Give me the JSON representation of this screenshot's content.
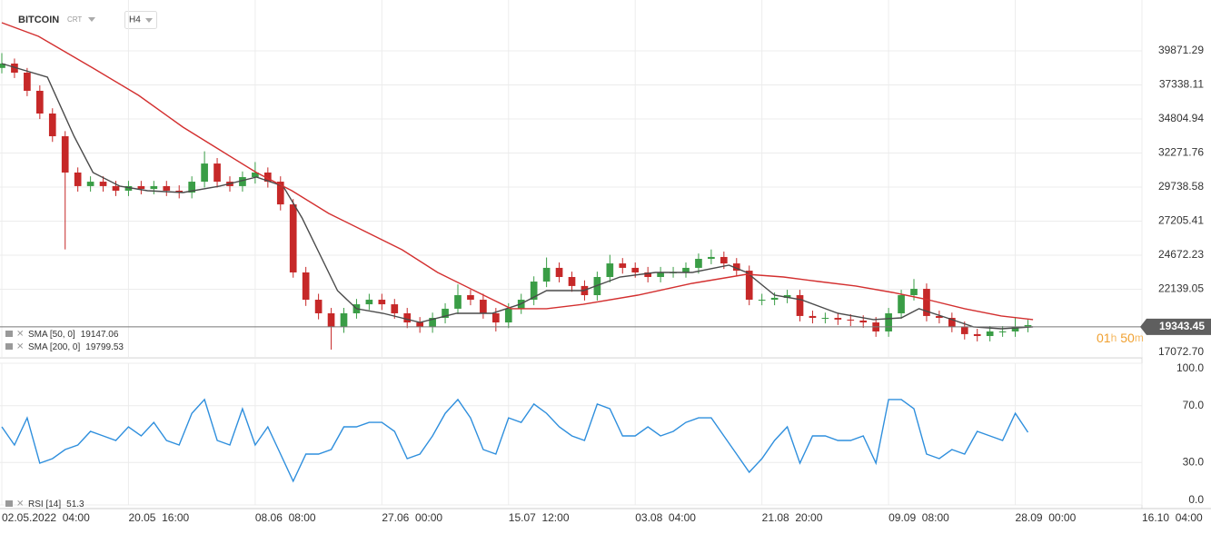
{
  "header": {
    "symbol": "BITCOIN",
    "market": "CRT",
    "timeframe": "H4"
  },
  "chart_data": [
    {
      "type": "candlestick",
      "x": [
        0,
        1,
        2,
        3,
        4,
        5,
        6,
        7,
        8,
        9,
        10,
        11,
        12,
        13,
        14,
        15,
        16,
        17,
        18,
        19,
        20,
        21,
        22,
        23,
        24,
        25,
        26,
        27,
        28,
        29,
        30,
        31,
        32,
        33,
        34,
        35,
        36,
        37,
        38,
        39,
        40,
        41,
        42,
        43,
        44,
        45,
        46,
        47,
        48,
        49,
        50,
        51,
        52,
        53,
        54,
        55,
        56,
        57,
        58,
        59,
        60,
        61,
        62,
        63,
        64,
        65,
        66,
        67,
        68,
        69,
        70,
        71,
        72,
        73,
        74,
        75,
        76,
        77,
        78,
        79,
        80,
        81
      ],
      "open": [
        38600,
        38925,
        38250,
        36900,
        35210,
        33520,
        30820,
        29810,
        30140,
        29810,
        29470,
        29810,
        29600,
        29810,
        29470,
        29330,
        30140,
        31490,
        30140,
        29810,
        30480,
        30820,
        30140,
        28450,
        23390,
        21360,
        20350,
        19340,
        20350,
        21020,
        21360,
        21020,
        20350,
        19670,
        19340,
        20010,
        20690,
        21700,
        21360,
        20350,
        19670,
        20690,
        21360,
        22710,
        23730,
        23050,
        22380,
        21700,
        23050,
        24060,
        23730,
        23390,
        23050,
        23390,
        23390,
        23730,
        24400,
        24540,
        24060,
        23520,
        21360,
        21360,
        21500,
        21700,
        20150,
        20010,
        20010,
        19880,
        19810,
        19670,
        19000,
        20350,
        21700,
        22170,
        20150,
        20010,
        19340,
        18800,
        18660,
        19000,
        19000,
        19340
      ],
      "high": [
        39700,
        39300,
        38600,
        37300,
        35600,
        33900,
        31200,
        30540,
        30540,
        30200,
        30200,
        30200,
        30200,
        30200,
        29870,
        30540,
        32400,
        31900,
        30540,
        30900,
        31600,
        31200,
        30540,
        28850,
        23800,
        21800,
        20750,
        20750,
        21420,
        21800,
        21800,
        21420,
        20750,
        20070,
        20400,
        21100,
        22500,
        22100,
        21800,
        20750,
        21100,
        21800,
        23100,
        24500,
        24130,
        23450,
        22800,
        23450,
        24700,
        24460,
        24130,
        23800,
        23800,
        23800,
        24130,
        24800,
        25100,
        24940,
        24460,
        23900,
        21800,
        21900,
        22100,
        22100,
        20550,
        20400,
        20400,
        20280,
        20200,
        20070,
        20750,
        22100,
        22900,
        22570,
        20550,
        20400,
        19740,
        19200,
        19400,
        19400,
        20000,
        19870
      ],
      "low": [
        38200,
        37850,
        36500,
        34800,
        33100,
        25100,
        29400,
        29400,
        29400,
        29070,
        29070,
        29200,
        29200,
        29070,
        28900,
        28900,
        29700,
        29700,
        29400,
        29400,
        30000,
        29700,
        28000,
        23000,
        20900,
        19900,
        17650,
        18900,
        19950,
        20600,
        20600,
        19950,
        19250,
        18900,
        18900,
        19600,
        20300,
        20950,
        19950,
        19000,
        19250,
        20300,
        20950,
        22300,
        22650,
        21950,
        21300,
        21300,
        22650,
        23300,
        23000,
        22650,
        22650,
        23000,
        23000,
        23300,
        24000,
        23650,
        23100,
        20950,
        20950,
        20950,
        21100,
        19750,
        19600,
        19600,
        19480,
        19400,
        19270,
        18600,
        18600,
        19950,
        21300,
        19750,
        19600,
        18940,
        18400,
        18260,
        18260,
        18600,
        18600,
        18940
      ],
      "close": [
        38925,
        38250,
        36900,
        35210,
        33520,
        30820,
        29810,
        30140,
        29810,
        29470,
        29810,
        29600,
        29810,
        29470,
        29330,
        30140,
        31490,
        30140,
        29810,
        30480,
        30820,
        30140,
        28450,
        23390,
        21360,
        20350,
        19340,
        20350,
        21020,
        21360,
        21020,
        20350,
        19670,
        19340,
        20010,
        20690,
        21700,
        21360,
        20350,
        19670,
        20690,
        21360,
        22710,
        23730,
        23050,
        22380,
        21700,
        23050,
        24060,
        23730,
        23390,
        23050,
        23390,
        23390,
        23730,
        24400,
        24540,
        24060,
        23520,
        21360,
        21360,
        21500,
        21700,
        20150,
        20010,
        20010,
        19880,
        19810,
        19670,
        19000,
        20350,
        21700,
        22170,
        20150,
        20010,
        19340,
        18800,
        18660,
        19000,
        19000,
        19340,
        19470
      ],
      "up_color": "#3a9d46",
      "down_color": "#c62828",
      "series": [
        {
          "name": "SMA [50, 0]",
          "last_value": 19147.06,
          "color": "#4a4a4a",
          "x": [
            0,
            3.6,
            5.7,
            7.2,
            9.3,
            11.5,
            14.3,
            17.2,
            20.1,
            22.2,
            23.7,
            25.1,
            26.5,
            28.0,
            30.1,
            33.0,
            35.9,
            38.7,
            40.9,
            43.0,
            45.9,
            48.8,
            51.6,
            54.5,
            57.4,
            58.8,
            61.0,
            63.1,
            66.0,
            68.8,
            71.0,
            72.4,
            74.6,
            76.7,
            78.9,
            81.4
          ],
          "values": [
            38925,
            37910,
            33520,
            30820,
            29810,
            29470,
            29330,
            29810,
            30480,
            29810,
            27440,
            24740,
            22040,
            20690,
            20350,
            19670,
            20350,
            20350,
            21020,
            22040,
            22040,
            23050,
            23390,
            23390,
            23930,
            23390,
            21700,
            21360,
            20350,
            19880,
            20010,
            20690,
            20010,
            19340,
            19200,
            19340
          ]
        },
        {
          "name": "SMA [200, 0]",
          "last_value": 19799.53,
          "color": "#d32f2f",
          "x": [
            0,
            2.9,
            7.2,
            10.8,
            14.3,
            17.2,
            20.1,
            22.9,
            25.8,
            28.7,
            31.6,
            34.4,
            37.3,
            40.2,
            43.0,
            45.9,
            50.2,
            54.5,
            58.8,
            61.7,
            64.5,
            67.4,
            70.3,
            73.1,
            76.0,
            78.9,
            81.4
          ],
          "values": [
            41965,
            40950,
            38590,
            36560,
            34200,
            32510,
            30820,
            29470,
            27780,
            26430,
            25080,
            23390,
            22040,
            20690,
            20690,
            21020,
            21700,
            22580,
            23250,
            23050,
            22710,
            22380,
            21900,
            21360,
            20690,
            20150,
            19880
          ]
        }
      ],
      "xlim": [
        0,
        90
      ],
      "ylim": [
        17106,
        43654
      ],
      "yticks": [
        {
          "value": 17072.7,
          "label": "17072.70"
        },
        22139.05,
        24672.23,
        27205.41,
        29738.58,
        32271.76,
        34804.94,
        37338.11,
        39871.29
      ],
      "current_price": 19343.45,
      "countdown": {
        "hours": "01",
        "hours_unit": "h",
        "minutes": "50",
        "minutes_unit": "m"
      },
      "grid": true
    },
    {
      "type": "line",
      "series": [
        {
          "name": "RSI [14]",
          "last_value": 51.3,
          "color": "#2f8fdd",
          "x": [
            0,
            1,
            2,
            3,
            4,
            5,
            6,
            7,
            8,
            9,
            10,
            11,
            12,
            13,
            14,
            15,
            16,
            17,
            18,
            19,
            20,
            21,
            22,
            23,
            24,
            25,
            26,
            27,
            28,
            29,
            30,
            31,
            32,
            33,
            34,
            35,
            36,
            37,
            38,
            39,
            40,
            41,
            42,
            43,
            44,
            45,
            46,
            47,
            48,
            49,
            50,
            51,
            52,
            53,
            54,
            55,
            56,
            57,
            58,
            59,
            60,
            61,
            62,
            63,
            64,
            65,
            66,
            67,
            68,
            69,
            70,
            71,
            72,
            73,
            74,
            75,
            76,
            77,
            78,
            79,
            80,
            81
          ],
          "values": [
            55.1,
            42.3,
            61.5,
            29.5,
            32.7,
            39.1,
            42.3,
            51.9,
            48.7,
            45.5,
            55.1,
            48.7,
            58.3,
            45.5,
            42.3,
            64.7,
            74.4,
            45.5,
            42.3,
            67.9,
            42.3,
            55.1,
            35.9,
            16.7,
            35.9,
            35.9,
            39.1,
            55.1,
            55.1,
            58.3,
            58.3,
            51.9,
            32.7,
            35.9,
            48.7,
            64.7,
            74.4,
            61.5,
            39.1,
            35.9,
            61.5,
            58.3,
            71.2,
            64.7,
            55.1,
            48.7,
            45.5,
            71.2,
            67.9,
            48.7,
            48.7,
            55.1,
            48.7,
            51.9,
            58.3,
            61.5,
            61.5,
            48.7,
            35.9,
            23.1,
            32.7,
            45.5,
            55.1,
            29.5,
            48.7,
            48.7,
            45.5,
            45.5,
            48.7,
            29.5,
            74.4,
            74.4,
            67.9,
            35.9,
            32.7,
            39.1,
            35.9,
            51.9,
            48.7,
            45.5,
            64.7,
            51.3
          ]
        }
      ],
      "xlim": [
        0,
        90
      ],
      "ylim": [
        0,
        100
      ],
      "yticks": [
        {
          "value": 0,
          "label": "0.0"
        },
        {
          "value": 30,
          "label": "30.0"
        },
        {
          "value": 70,
          "label": "70.0"
        },
        {
          "value": 100,
          "label": "100.0"
        }
      ],
      "xticks": [
        {
          "value": 0,
          "label": "02.05.2022  04:00"
        },
        {
          "value": 10,
          "label": "20.05  16:00"
        },
        {
          "value": 20,
          "label": "08.06  08:00"
        },
        {
          "value": 30,
          "label": "27.06  00:00"
        },
        {
          "value": 40,
          "label": "15.07  12:00"
        },
        {
          "value": 50,
          "label": "03.08  04:00"
        },
        {
          "value": 60,
          "label": "21.08  20:00"
        },
        {
          "value": 70,
          "label": "09.09  08:00"
        },
        {
          "value": 80,
          "label": "28.09  00:00"
        },
        {
          "value": 90,
          "label": "16.10  04:00"
        }
      ],
      "grid": true
    }
  ]
}
